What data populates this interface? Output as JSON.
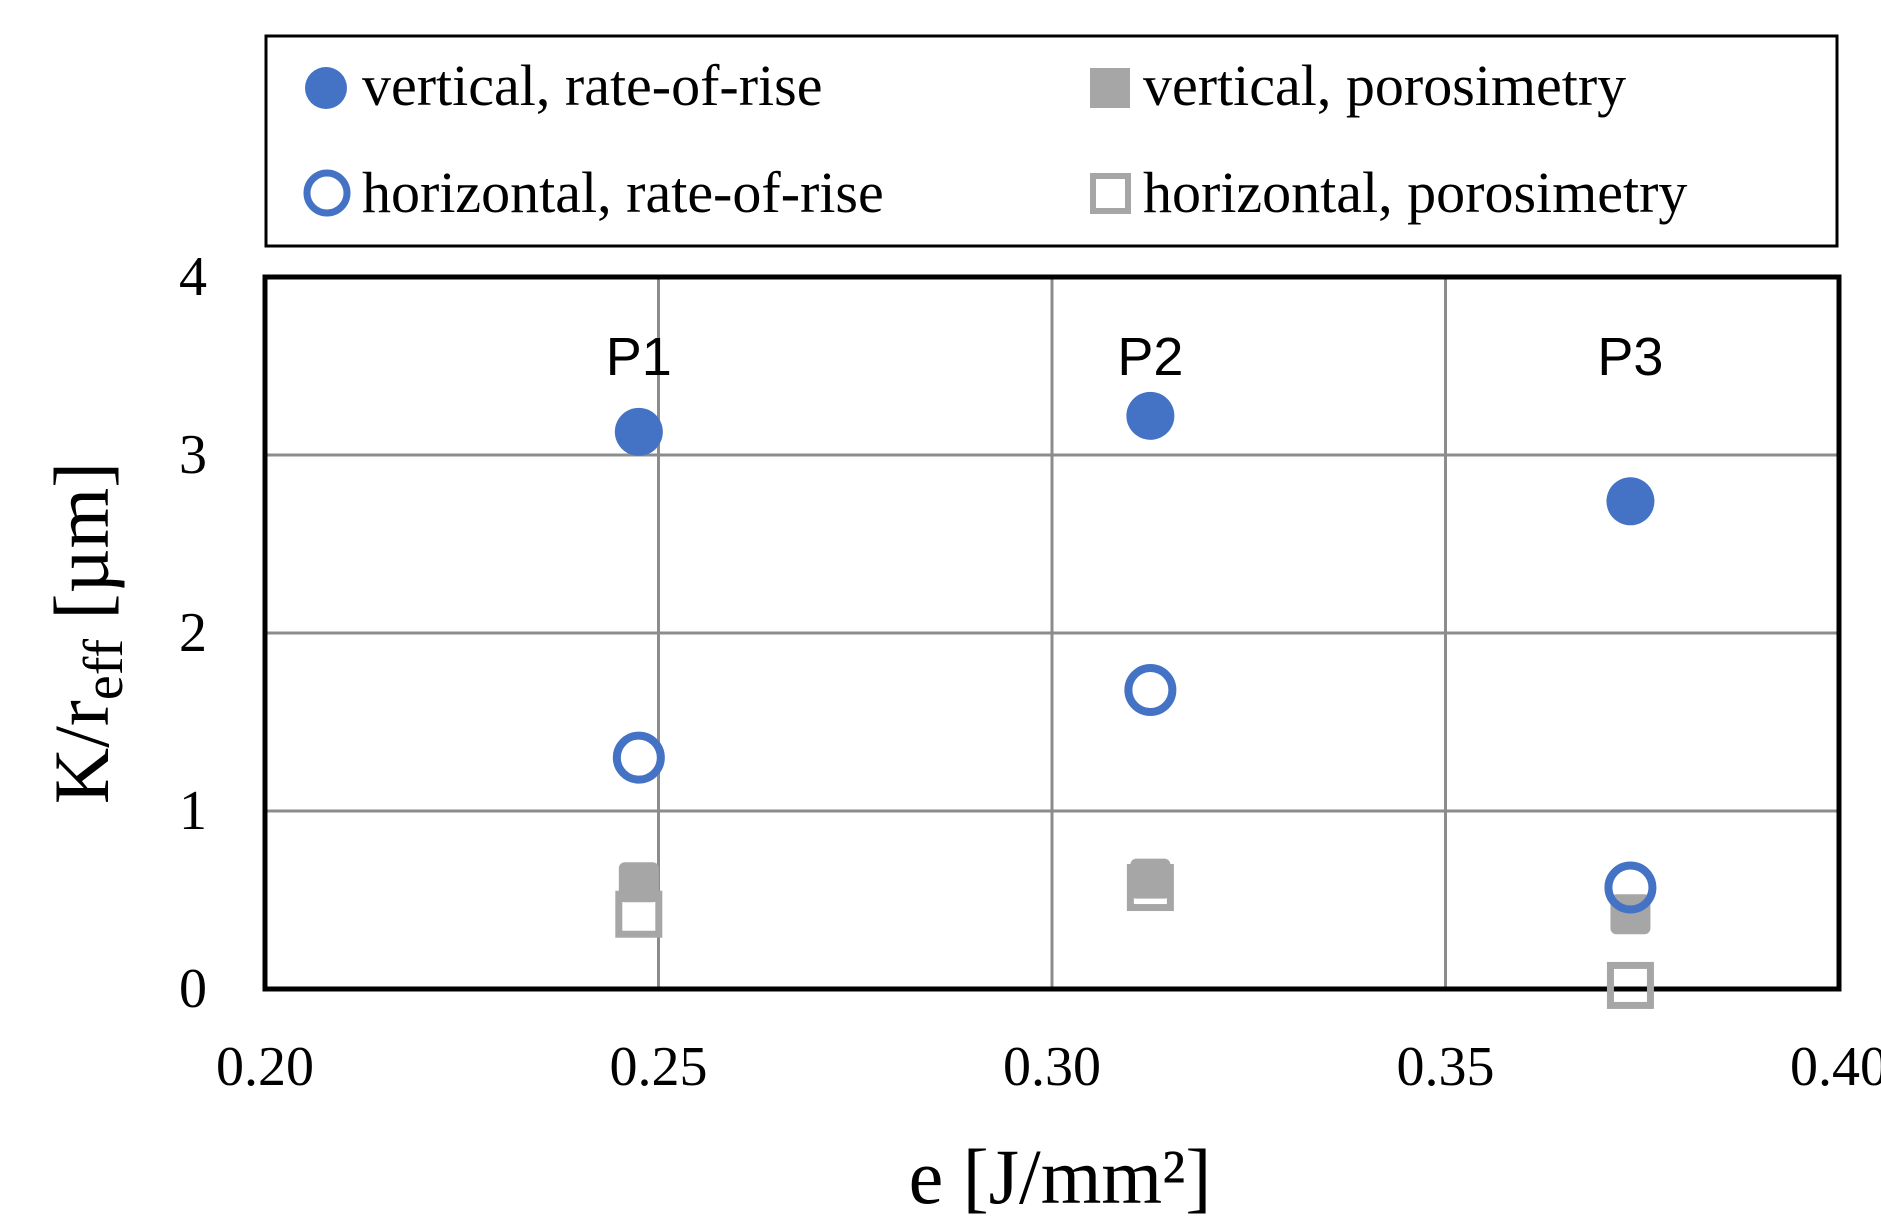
{
  "colors": {
    "blue": "#4472c4",
    "gray_fill": "#a6a6a6",
    "gray_stroke": "#a6a6a6",
    "grid": "#8c8c8c",
    "frame": "#000000"
  },
  "legend": {
    "items": [
      {
        "label": "vertical, rate-of-rise",
        "marker": "filled-circle",
        "color": "#4472c4"
      },
      {
        "label": "vertical, porosimetry",
        "marker": "filled-square",
        "color": "#a6a6a6"
      },
      {
        "label": "horizontal, rate-of-rise",
        "marker": "open-circle",
        "color": "#4472c4"
      },
      {
        "label": "horizontal, porosimetry",
        "marker": "open-square",
        "color": "#a6a6a6"
      }
    ]
  },
  "chart_data": {
    "type": "scatter",
    "title": "",
    "xlabel": "e [J/mm²]",
    "ylabel": "K/r",
    "ylabel_sub": "eff",
    "ylabel_unit": " [µm]",
    "xlim": [
      0.2,
      0.4
    ],
    "ylim": [
      0,
      4
    ],
    "x_ticks": [
      "0.20",
      "0.25",
      "0.30",
      "0.35",
      "0.40"
    ],
    "y_ticks": [
      "0",
      "1",
      "2",
      "3",
      "4"
    ],
    "grid": true,
    "legend_position": "top",
    "annotations": [
      {
        "text": "P1",
        "x": 0.2475,
        "y": 3.55
      },
      {
        "text": "P2",
        "x": 0.3125,
        "y": 3.55
      },
      {
        "text": "P3",
        "x": 0.3735,
        "y": 3.55
      }
    ],
    "series": [
      {
        "name": "vertical, rate-of-rise",
        "marker": "filled-circle",
        "x": [
          0.2475,
          0.3125,
          0.3735
        ],
        "y": [
          3.13,
          3.22,
          2.74
        ]
      },
      {
        "name": "vertical, porosimetry",
        "marker": "filled-square",
        "x": [
          0.2475,
          0.3125,
          0.3735
        ],
        "y": [
          0.6,
          0.62,
          0.42
        ]
      },
      {
        "name": "horizontal, rate-of-rise",
        "marker": "open-circle",
        "x": [
          0.2475,
          0.3125,
          0.3735
        ],
        "y": [
          1.3,
          1.68,
          0.57
        ]
      },
      {
        "name": "horizontal, porosimetry",
        "marker": "open-square",
        "x": [
          0.2475,
          0.3125,
          0.3735
        ],
        "y": [
          0.42,
          0.57,
          0.02
        ]
      }
    ]
  }
}
